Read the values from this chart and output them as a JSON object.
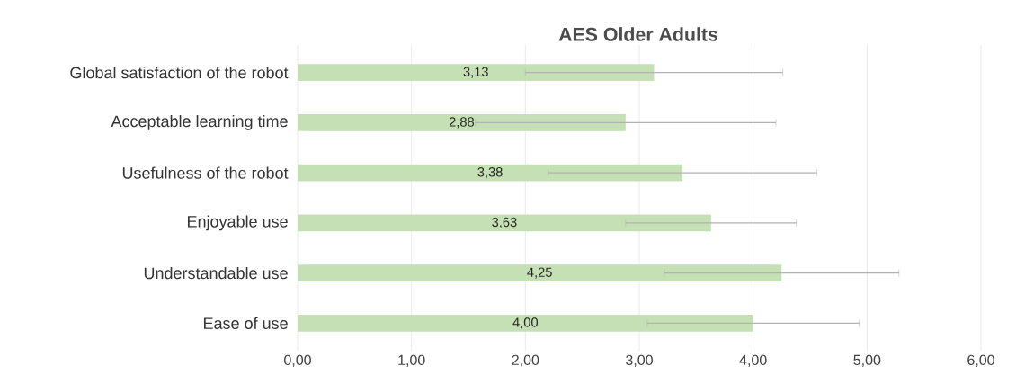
{
  "chart_data": {
    "type": "bar",
    "orientation": "horizontal",
    "title": "AES Older Adults",
    "categories": [
      "Global satisfaction of the robot",
      "Acceptable learning time",
      "Usefulness of the robot",
      "Enjoyable use",
      "Understandable use",
      "Ease of use"
    ],
    "values": [
      3.13,
      2.88,
      3.38,
      3.63,
      4.25,
      4.0
    ],
    "errors": [
      1.13,
      1.32,
      1.18,
      0.75,
      1.03,
      0.93
    ],
    "value_labels": [
      "3,13",
      "2,88",
      "3,38",
      "3,63",
      "4,25",
      "4,00"
    ],
    "color": "#c5e0b4",
    "xlim": [
      0,
      6
    ],
    "xticks": [
      {
        "value": 0,
        "label": "0,00"
      },
      {
        "value": 1,
        "label": "1,00"
      },
      {
        "value": 2,
        "label": "2,00"
      },
      {
        "value": 3,
        "label": "3,00"
      },
      {
        "value": 4,
        "label": "4,00"
      },
      {
        "value": 5,
        "label": "5,00"
      },
      {
        "value": 6,
        "label": "6,00"
      }
    ],
    "grid": "x"
  }
}
